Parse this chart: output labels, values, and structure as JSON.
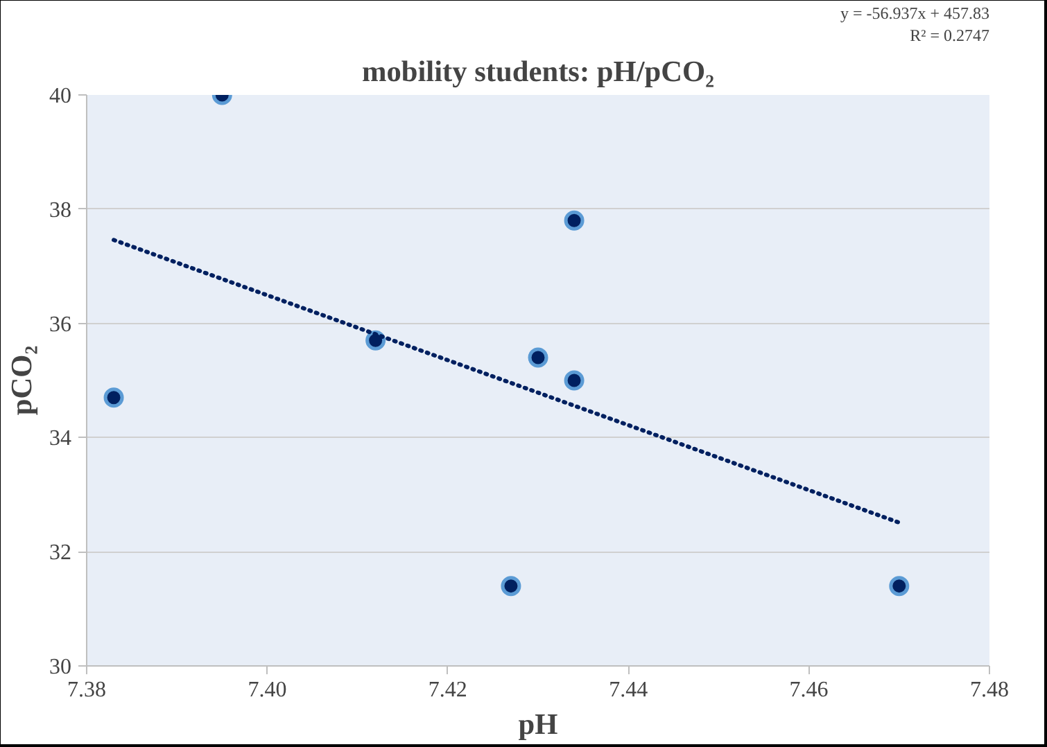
{
  "chart_data": {
    "type": "scatter",
    "title": "mobility students: pH/pCO₂",
    "xlabel": "pH",
    "ylabel": "pCO₂",
    "annotations": [
      "y = -56.937x + 457.83",
      "R² = 0.2747"
    ],
    "xlim": [
      7.38,
      7.48
    ],
    "xticks": [
      {
        "value": 7.38,
        "label": "7.38"
      },
      {
        "value": 7.4,
        "label": "7.40"
      },
      {
        "value": 7.42,
        "label": "7.42"
      },
      {
        "value": 7.44,
        "label": "7.44"
      },
      {
        "value": 7.46,
        "label": "7.46"
      },
      {
        "value": 7.48,
        "label": "7.48"
      }
    ],
    "ylim": [
      30,
      40
    ],
    "yticks": [
      30,
      32,
      34,
      36,
      38,
      40
    ],
    "grid": "y",
    "marker": "circle",
    "series": [
      {
        "color": "#002060",
        "x": [
          7.383,
          7.395,
          7.412,
          7.427,
          7.43,
          7.434,
          7.434,
          7.47
        ],
        "values": [
          34.7,
          40.0,
          35.7,
          31.4,
          35.4,
          37.8,
          35.0,
          31.4
        ]
      },
      {
        "type": "line",
        "color": "#002060",
        "line_style": "dotted",
        "marker": "none",
        "x": [
          7.383,
          7.47
        ],
        "values": [
          37.46,
          32.51
        ]
      }
    ]
  }
}
